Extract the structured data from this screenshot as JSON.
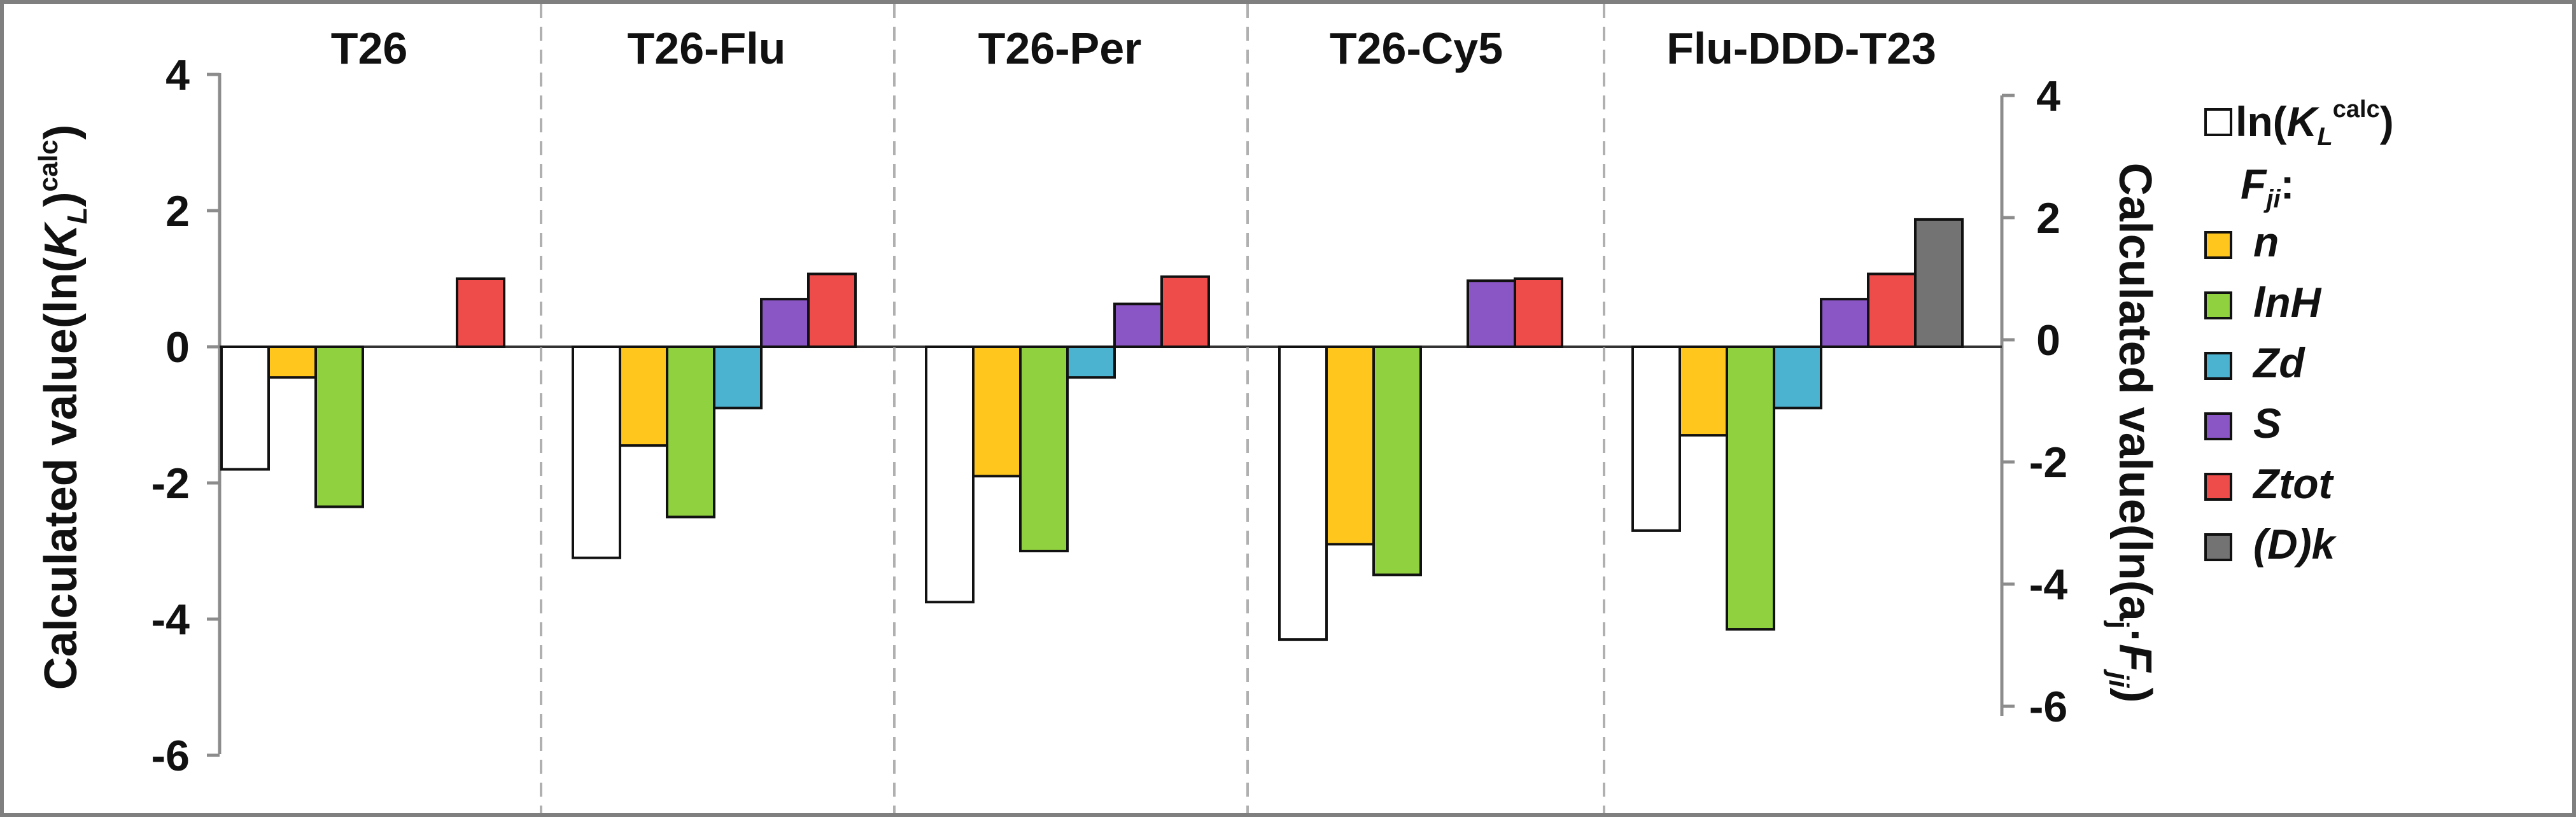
{
  "chart_data": {
    "type": "bar",
    "panels": [
      "T26",
      "T26-Flu",
      "T26-Per",
      "T26-Cy5",
      "Flu-DDD-T23"
    ],
    "ylabel_left": "Calculated value(ln(K_L)^calc)",
    "ylabel_right": "Calculated value(ln(a_j·F_ji))",
    "ylim": [
      -6,
      4
    ],
    "yticks": [
      4,
      2,
      0,
      -2,
      -4,
      -6
    ],
    "legend_position": "right",
    "legend_header": "F_ji:",
    "series": [
      {
        "name": "ln(K_L^calc)",
        "color": "#ffffff",
        "values": [
          -1.8,
          -3.1,
          -3.75,
          -4.3,
          -2.7
        ]
      },
      {
        "name": "n",
        "color": "#ffc71e",
        "values": [
          -0.45,
          -1.45,
          -1.9,
          -2.9,
          -1.3
        ]
      },
      {
        "name": "lnH",
        "color": "#8fd13f",
        "values": [
          -2.35,
          -2.5,
          -3.0,
          -3.35,
          -4.15
        ]
      },
      {
        "name": "Zd",
        "color": "#4bb3cf",
        "values": [
          null,
          -0.9,
          -0.45,
          null,
          -0.9
        ]
      },
      {
        "name": "S",
        "color": "#8a55c4",
        "values": [
          null,
          0.7,
          0.63,
          0.97,
          0.7
        ]
      },
      {
        "name": "Ztot",
        "color": "#ee4b4b",
        "values": [
          1.0,
          1.07,
          1.03,
          1.0,
          1.07
        ]
      },
      {
        "name": "(D)k",
        "color": "#737373",
        "values": [
          null,
          null,
          null,
          null,
          1.87
        ]
      }
    ]
  }
}
